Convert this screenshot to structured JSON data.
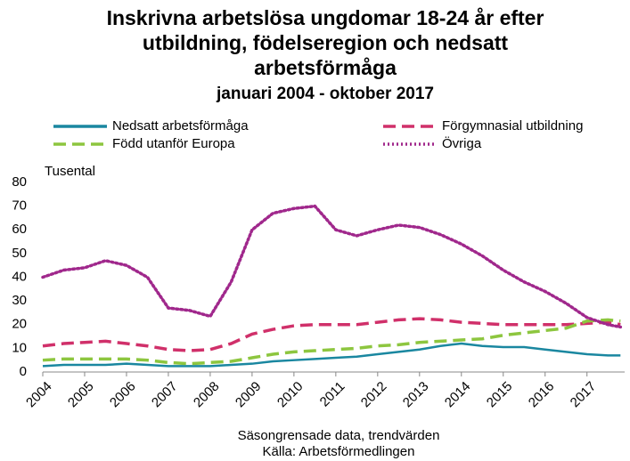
{
  "chart_data": {
    "type": "line",
    "title": [
      "Inskrivna arbetslösa ungdomar 18-24 år efter",
      "utbildning, födelseregion och nedsatt",
      "arbetsförmåga"
    ],
    "subtitle": "januari 2004 - oktober 2017",
    "y_label": "Tusental",
    "notes": [
      "Säsongrensade data, trendvärden",
      "Källa: Arbetsförmedlingen"
    ],
    "x": [
      2004,
      2004.5,
      2005,
      2005.5,
      2006,
      2006.5,
      2007,
      2007.5,
      2008,
      2008.5,
      2009,
      2009.5,
      2010,
      2010.5,
      2011,
      2011.5,
      2012,
      2012.5,
      2013,
      2013.5,
      2014,
      2014.5,
      2015,
      2015.5,
      2016,
      2016.5,
      2017,
      2017.5,
      2017.8
    ],
    "series": [
      {
        "name": "Nedsatt arbetsförmåga",
        "color": "#1a87a0",
        "dash": "solid",
        "values": [
          2.5,
          3,
          3,
          3,
          3.5,
          3,
          2.5,
          2.5,
          2.5,
          3,
          3.5,
          4.5,
          5,
          5.5,
          6,
          6.5,
          7.5,
          8.5,
          9.5,
          11,
          12,
          11,
          10.5,
          10.5,
          9.5,
          8.5,
          7.5,
          7,
          7
        ]
      },
      {
        "name": "Förgymnasial utbildning",
        "color": "#d0306a",
        "dash": "dashed",
        "values": [
          11,
          12,
          12.5,
          13,
          12,
          11,
          9.5,
          9,
          9.5,
          12,
          16,
          18,
          19.5,
          20,
          20,
          20,
          21,
          22,
          22.5,
          22,
          21,
          20.5,
          20,
          20,
          20,
          20,
          20.5,
          21,
          20
        ]
      },
      {
        "name": "Född utanför Europa",
        "color": "#8dc63f",
        "dash": "dashed",
        "values": [
          5,
          5.5,
          5.5,
          5.5,
          5.5,
          5,
          4,
          3.5,
          4,
          4.5,
          6,
          7.5,
          8.5,
          9,
          9.5,
          10,
          11,
          11.5,
          12.5,
          13,
          13.5,
          14,
          15.5,
          16.5,
          17.5,
          18.5,
          21.5,
          22,
          21.5
        ]
      },
      {
        "name": "Övriga",
        "color": "#a0288c",
        "dash": "dotted",
        "values": [
          40,
          43,
          44,
          47,
          45,
          40,
          27,
          26,
          23.5,
          38,
          60,
          67,
          69,
          70,
          60,
          57.5,
          60,
          62,
          61,
          58,
          54,
          49,
          43,
          38,
          34,
          29,
          23,
          20,
          19
        ]
      }
    ],
    "xlim": [
      2004,
      2017.9
    ],
    "xticks": [
      2004,
      2005,
      2006,
      2007,
      2008,
      2009,
      2010,
      2011,
      2012,
      2013,
      2014,
      2015,
      2016,
      2017
    ],
    "ylim": [
      0,
      80
    ],
    "yticks": [
      0,
      10,
      20,
      30,
      40,
      50,
      60,
      70,
      80
    ],
    "grid": false
  }
}
